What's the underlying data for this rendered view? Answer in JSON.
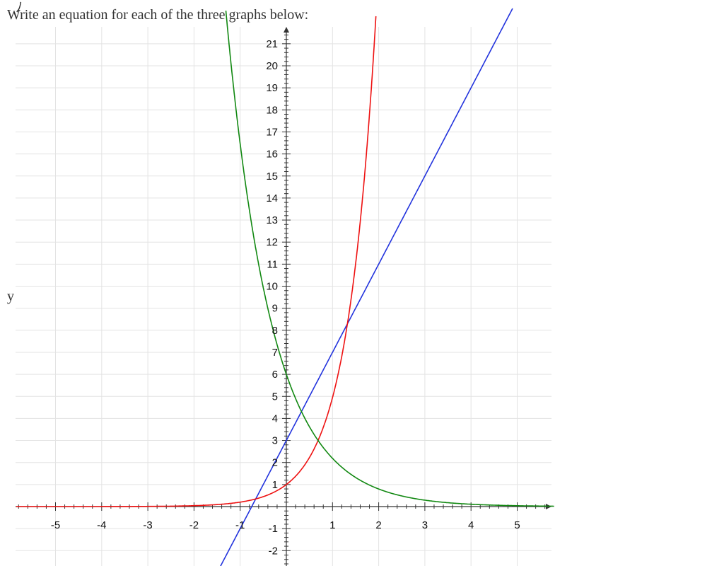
{
  "prompt": "Write an equation for each of the three graphs below:",
  "chart_data": {
    "type": "line",
    "title": "",
    "xlabel": "",
    "ylabel": "y",
    "xlim": [
      -6.1,
      5.8
    ],
    "ylim": [
      -2.6,
      21.6
    ],
    "grid": true,
    "x_ticks": [
      -5,
      -4,
      -3,
      -2,
      -1,
      1,
      2,
      3,
      4,
      5
    ],
    "y_ticks": [
      -2,
      -1,
      1,
      2,
      3,
      4,
      5,
      6,
      7,
      8,
      9,
      10,
      11,
      12,
      13,
      14,
      15,
      16,
      17,
      18,
      19,
      20,
      21
    ],
    "series": [
      {
        "color": "#2233dd",
        "kind": "linear",
        "points": [
          [
            -0.75,
            0
          ],
          [
            1.625,
            9.5
          ]
        ]
      },
      {
        "color": "#ee1111",
        "kind": "exponential",
        "points": [
          [
            0,
            1
          ],
          [
            0.687,
            3
          ],
          [
            1.62,
            9.5
          ]
        ]
      },
      {
        "color": "#118811",
        "kind": "exponential",
        "points": [
          [
            0,
            6
          ],
          [
            0.687,
            3
          ],
          [
            0.42,
            4.3
          ]
        ]
      }
    ]
  }
}
